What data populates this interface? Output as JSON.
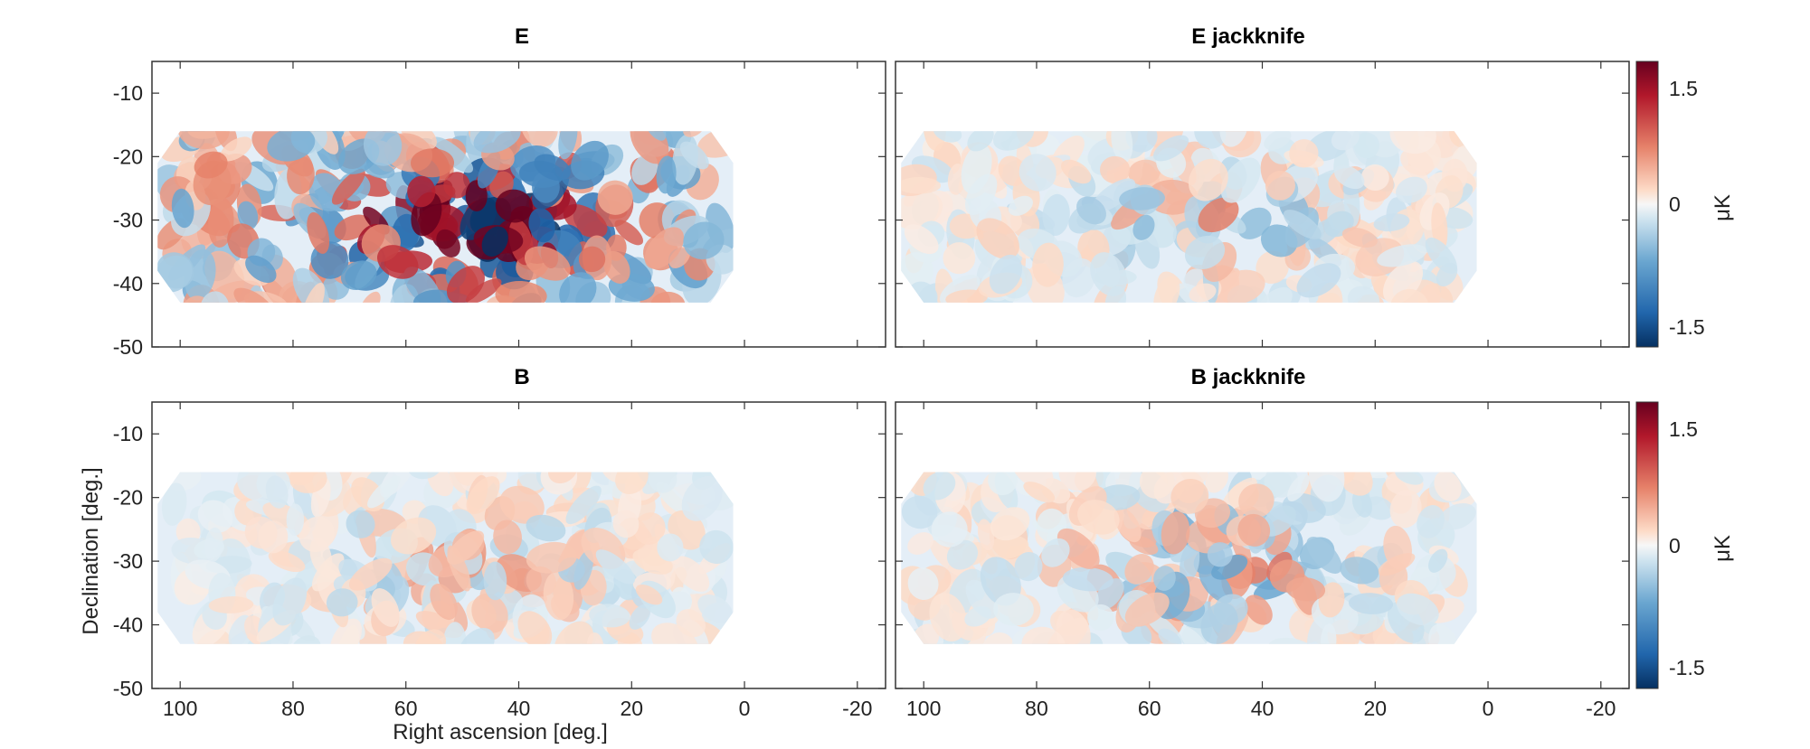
{
  "chart_data": {
    "type": "heatmap",
    "description_free": true,
    "xlabel": "Right ascension [deg.]",
    "ylabel": "Declination [deg.]",
    "xlim": [
      105,
      -25
    ],
    "ylim": [
      -50,
      -5
    ],
    "xticks": [
      100,
      80,
      60,
      40,
      20,
      0,
      -20
    ],
    "yticks": [
      -10,
      -20,
      -30,
      -40,
      -50
    ],
    "colorbar": {
      "label": "μK",
      "range": [
        -1.7,
        1.7
      ],
      "ticks": [
        1.5,
        0,
        -1.5
      ],
      "colormap": "blue-white-red"
    },
    "panels": [
      {
        "title": "E",
        "amplitude": 1.5,
        "core_amplitude": 1.6,
        "seed": 11
      },
      {
        "title": "E jackknife",
        "amplitude": 0.55,
        "core_amplitude": 0.35,
        "seed": 23
      },
      {
        "title": "B",
        "amplitude": 0.5,
        "core_amplitude": 0.35,
        "seed": 37
      },
      {
        "title": "B jackknife",
        "amplitude": 0.55,
        "core_amplitude": 0.5,
        "seed": 53
      }
    ],
    "footprint": {
      "ra_range": [
        6,
        100
      ],
      "dec_range": [
        -43,
        -15
      ]
    }
  },
  "colors": {
    "deep_red": "#67001f",
    "red": "#b2182b",
    "white": "#f7f7f7",
    "blue": "#2166ac",
    "deep_blue": "#053061",
    "axis": "#333333"
  }
}
